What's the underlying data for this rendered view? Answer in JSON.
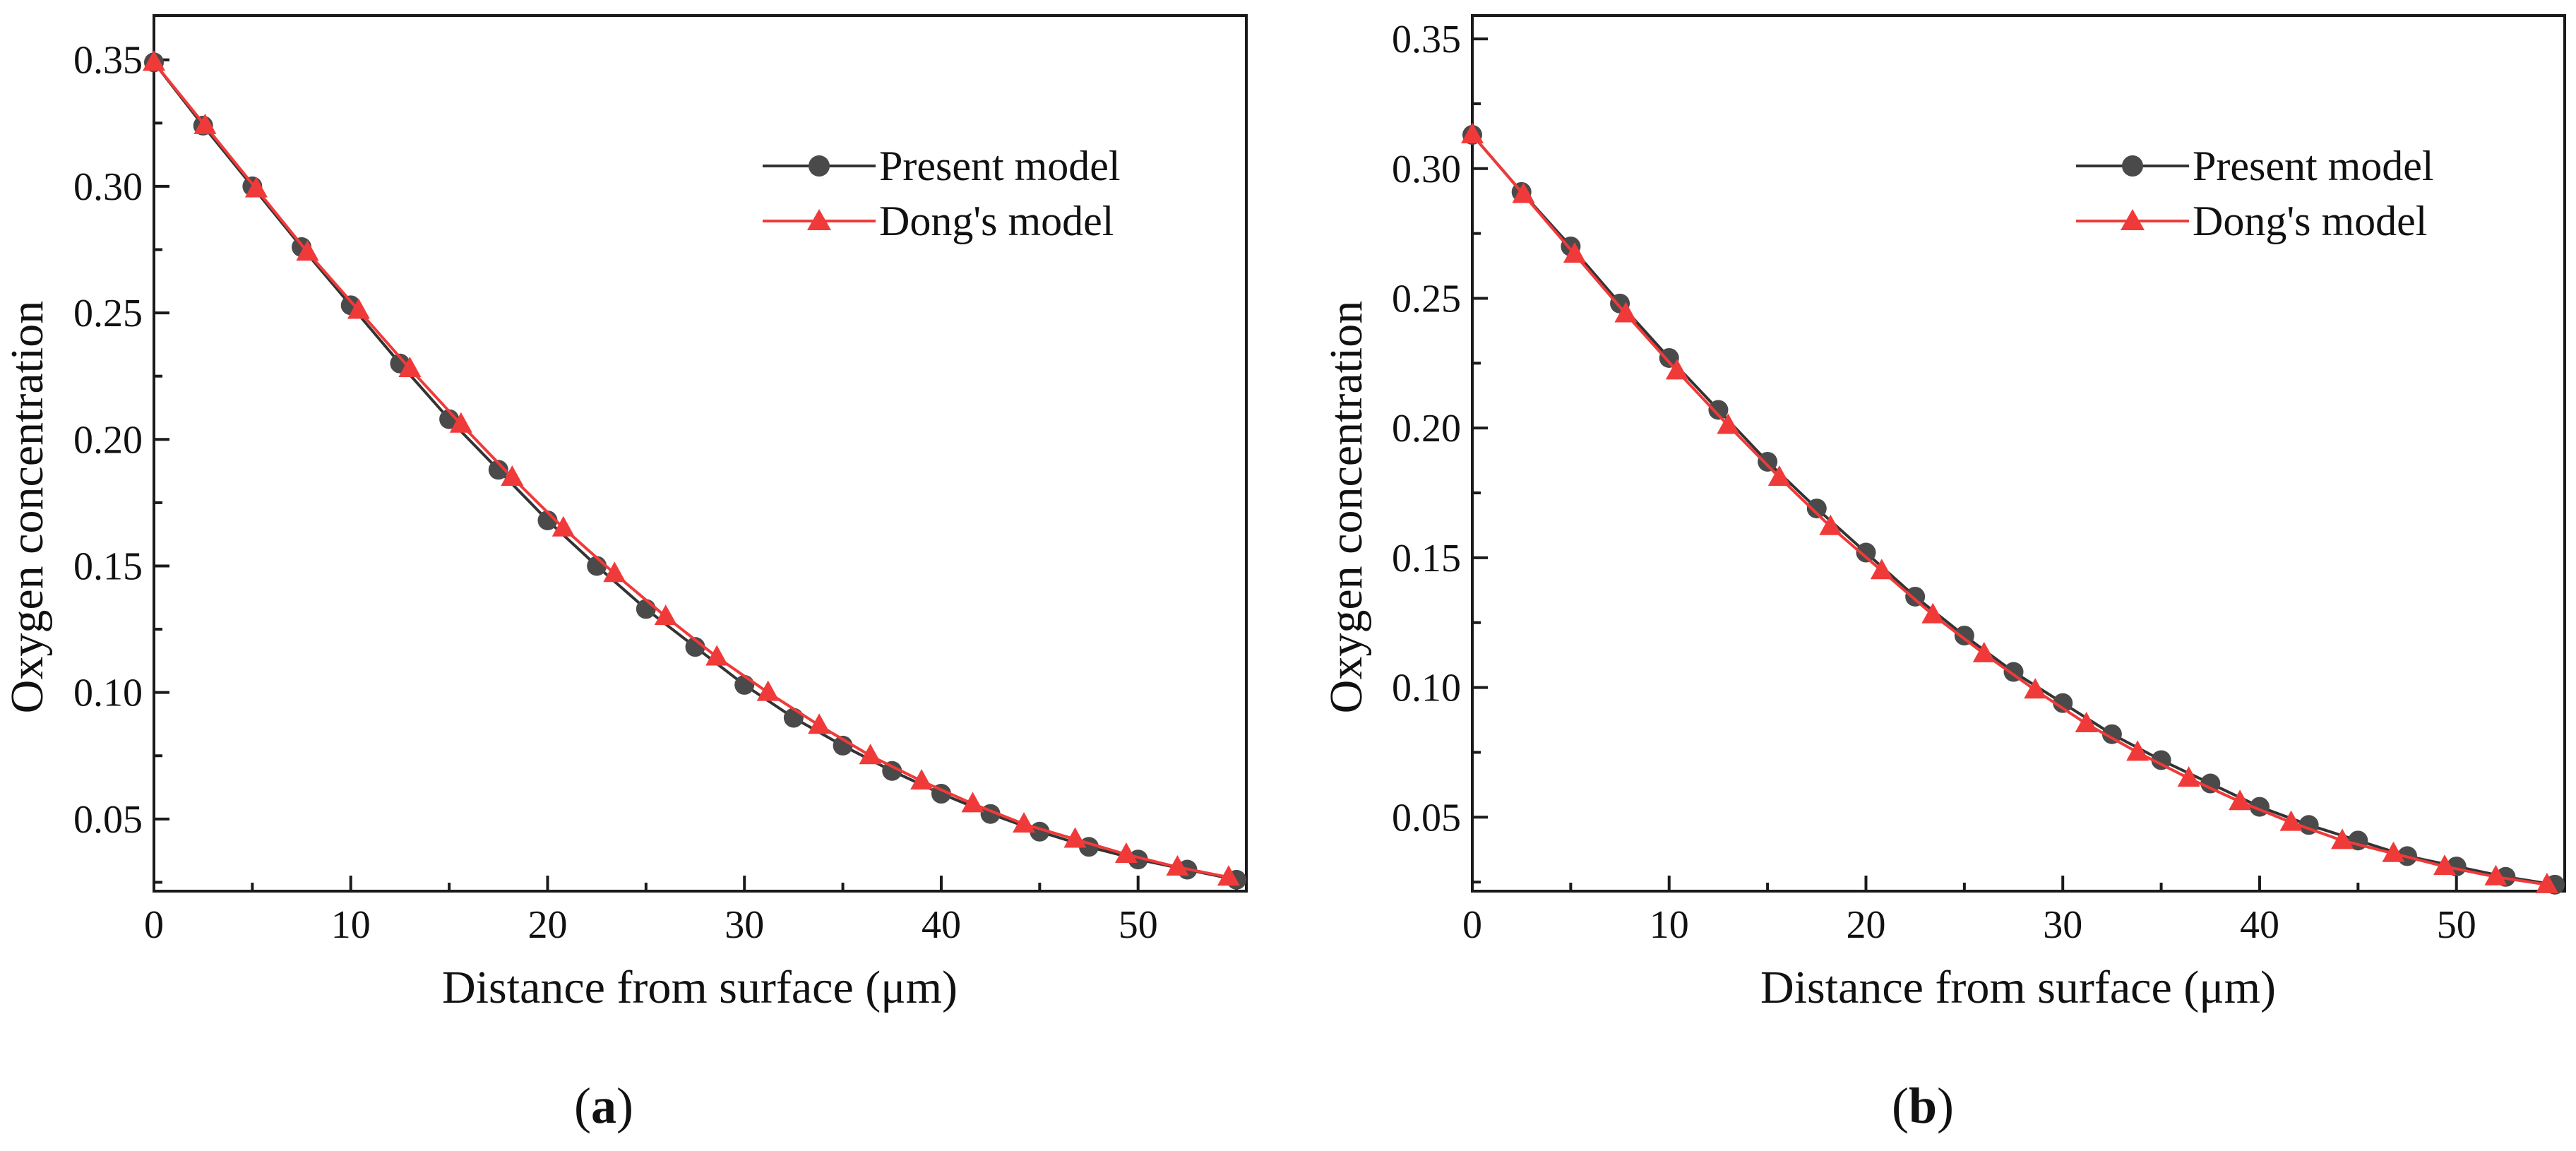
{
  "figure": {
    "panels": [
      {
        "label_open": "(",
        "label_letter": "a",
        "label_close": ")"
      },
      {
        "label_open": "(",
        "label_letter": "b",
        "label_close": ")"
      }
    ]
  },
  "colors": {
    "present": "#4a4a4a",
    "present_line": "#333333",
    "dong": "#f03a3a",
    "axis": "#1a1a1a"
  },
  "chart_data": [
    {
      "type": "line",
      "title": "",
      "xlabel": "Distance from surface (μm)",
      "ylabel": "Oxygen concentration",
      "xlim": [
        0,
        55.5
      ],
      "ylim": [
        0.0215,
        0.3675
      ],
      "x_ticks": [
        0,
        10,
        20,
        30,
        40,
        50
      ],
      "x_tick_labels": [
        "0",
        "10",
        "20",
        "30",
        "40",
        "50"
      ],
      "y_ticks": [
        0.05,
        0.1,
        0.15,
        0.2,
        0.25,
        0.3,
        0.35
      ],
      "y_tick_labels": [
        "0.05",
        "0.10",
        "0.15",
        "0.20",
        "0.25",
        "0.30",
        "0.35"
      ],
      "legend_position": "top-right",
      "grid": false,
      "series": [
        {
          "name": "Present model",
          "marker": "circle",
          "x": [
            0,
            2.5,
            5,
            7.5,
            10,
            12.5,
            15,
            17.5,
            20,
            22.5,
            25,
            27.5,
            30,
            32.5,
            35,
            37.5,
            40,
            42.5,
            45,
            47.5,
            50,
            52.5,
            55
          ],
          "y": [
            0.349,
            0.324,
            0.3,
            0.276,
            0.253,
            0.23,
            0.208,
            0.188,
            0.168,
            0.15,
            0.133,
            0.118,
            0.103,
            0.09,
            0.079,
            0.069,
            0.06,
            0.052,
            0.045,
            0.039,
            0.034,
            0.03,
            0.026
          ]
        },
        {
          "name": "Dong's model",
          "marker": "triangle",
          "x": [
            0,
            2.6,
            5.2,
            7.8,
            10.4,
            13.0,
            15.6,
            18.2,
            20.8,
            23.4,
            26.0,
            28.6,
            31.2,
            33.8,
            36.4,
            39.0,
            41.6,
            44.2,
            46.8,
            49.4,
            52.0,
            54.6
          ],
          "y": [
            0.349,
            0.324,
            0.299,
            0.274,
            0.251,
            0.228,
            0.206,
            0.185,
            0.165,
            0.147,
            0.13,
            0.114,
            0.1,
            0.087,
            0.075,
            0.065,
            0.056,
            0.048,
            0.042,
            0.036,
            0.031,
            0.027
          ]
        }
      ]
    },
    {
      "type": "line",
      "title": "",
      "xlabel": "Distance from surface (μm)",
      "ylabel": "Oxygen concentration",
      "xlim": [
        0,
        55.5
      ],
      "ylim": [
        0.0215,
        0.359
      ],
      "x_ticks": [
        0,
        10,
        20,
        30,
        40,
        50
      ],
      "x_tick_labels": [
        "0",
        "10",
        "20",
        "30",
        "40",
        "50"
      ],
      "y_ticks": [
        0.05,
        0.1,
        0.15,
        0.2,
        0.25,
        0.3,
        0.35
      ],
      "y_tick_labels": [
        "0.05",
        "0.10",
        "0.15",
        "0.20",
        "0.25",
        "0.30",
        "0.35"
      ],
      "legend_position": "top-right",
      "grid": false,
      "series": [
        {
          "name": "Present model",
          "marker": "circle",
          "x": [
            0,
            2.5,
            5,
            7.5,
            10,
            12.5,
            15,
            17.5,
            20,
            22.5,
            25,
            27.5,
            30,
            32.5,
            35,
            37.5,
            40,
            42.5,
            45,
            47.5,
            50,
            52.5,
            55
          ],
          "y": [
            0.313,
            0.291,
            0.27,
            0.248,
            0.227,
            0.207,
            0.187,
            0.169,
            0.152,
            0.135,
            0.12,
            0.106,
            0.094,
            0.082,
            0.072,
            0.063,
            0.054,
            0.047,
            0.041,
            0.035,
            0.031,
            0.027,
            0.024
          ]
        },
        {
          "name": "Dong's model",
          "marker": "triangle",
          "x": [
            0,
            2.6,
            5.2,
            7.8,
            10.4,
            13.0,
            15.6,
            18.2,
            20.8,
            23.4,
            26.0,
            28.6,
            31.2,
            33.8,
            36.4,
            39.0,
            41.6,
            44.2,
            46.8,
            49.4,
            52.0,
            54.6
          ],
          "y": [
            0.313,
            0.29,
            0.267,
            0.244,
            0.222,
            0.201,
            0.181,
            0.162,
            0.145,
            0.128,
            0.113,
            0.099,
            0.086,
            0.075,
            0.065,
            0.056,
            0.048,
            0.041,
            0.036,
            0.031,
            0.027,
            0.024
          ]
        }
      ]
    }
  ]
}
